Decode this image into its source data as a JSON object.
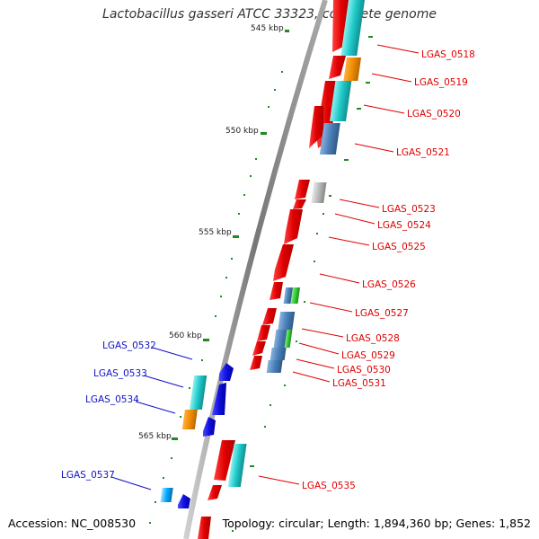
{
  "title": "Lactobacillus gasseri ATCC 33323, complete genome",
  "footer": {
    "accession": "Accession: NC_008530",
    "stats": "Topology: circular; Length: 1,894,360 bp; Genes: 1,852"
  },
  "colors": {
    "backbone": "#8c8c8c",
    "tick": "#1f8a1f",
    "label_right": "#e00000",
    "label_left": "#1010c8",
    "cds_red": "#e60000",
    "cds_blue": "#1010e0",
    "feature_cyan": "#1fcaca",
    "feature_orange": "#f08c00",
    "feature_steel": "#4a7fb8",
    "feature_gray": "#b8b8b8",
    "feature_green": "#33cc33",
    "feature_lightblue": "#00a8ff"
  },
  "scale": {
    "unit": "kbp",
    "major_ticks": [
      {
        "kbp": 545,
        "label": "545 kbp"
      },
      {
        "kbp": 550,
        "label": "550 kbp"
      },
      {
        "kbp": 555,
        "label": "555 kbp"
      },
      {
        "kbp": 560,
        "label": "560 kbp"
      },
      {
        "kbp": 565,
        "label": "565 kbp"
      }
    ]
  },
  "gene_labels": [
    {
      "text": "LGAS_0518",
      "side": "right"
    },
    {
      "text": "LGAS_0519",
      "side": "right"
    },
    {
      "text": "LGAS_0520",
      "side": "right"
    },
    {
      "text": "LGAS_0521",
      "side": "right"
    },
    {
      "text": "LGAS_0523",
      "side": "right"
    },
    {
      "text": "LGAS_0524",
      "side": "right"
    },
    {
      "text": "LGAS_0525",
      "side": "right"
    },
    {
      "text": "LGAS_0526",
      "side": "right"
    },
    {
      "text": "LGAS_0527",
      "side": "right"
    },
    {
      "text": "LGAS_0528",
      "side": "right"
    },
    {
      "text": "LGAS_0529",
      "side": "right"
    },
    {
      "text": "LGAS_0530",
      "side": "right"
    },
    {
      "text": "LGAS_0531",
      "side": "right"
    },
    {
      "text": "LGAS_0535",
      "side": "right"
    },
    {
      "text": "LGAS_0532",
      "side": "left"
    },
    {
      "text": "LGAS_0533",
      "side": "left"
    },
    {
      "text": "LGAS_0534",
      "side": "left"
    },
    {
      "text": "LGAS_0537",
      "side": "left"
    }
  ]
}
